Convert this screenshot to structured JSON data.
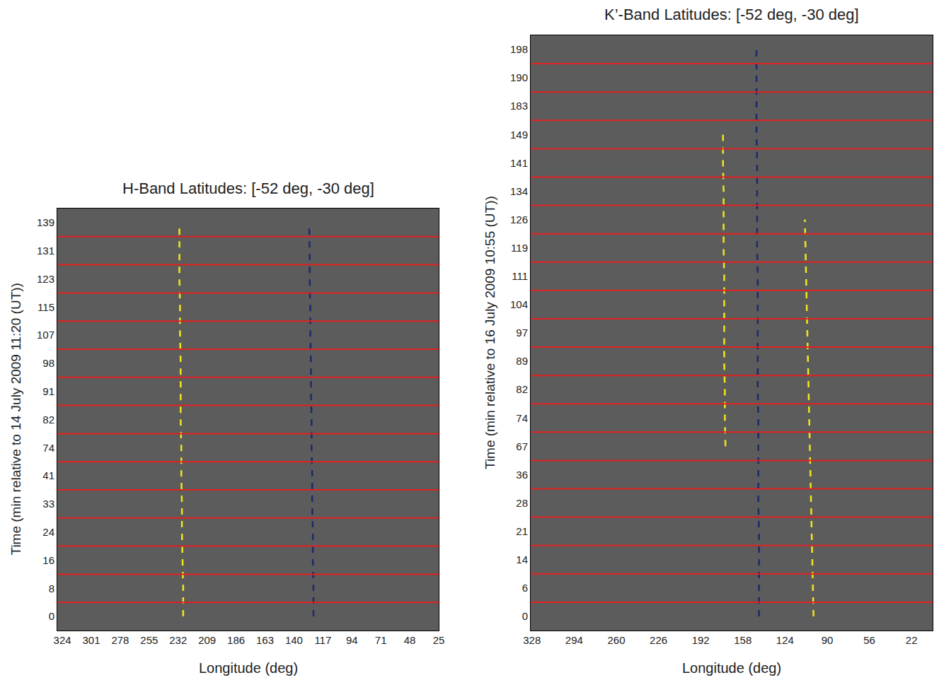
{
  "chart_data": [
    {
      "type": "line",
      "title": "H-Band Latitudes: [-52 deg, -30 deg]",
      "x_label": "Longitude (deg)",
      "y_label": "Time (min relative to 14 July 2009 11:20 (UT))",
      "categories": [
        "0",
        "8",
        "16",
        "24",
        "33",
        "41",
        "74",
        "82",
        "91",
        "98",
        "107",
        "115",
        "123",
        "131",
        "139"
      ],
      "xlim": [
        328,
        25
      ],
      "xticks": [
        324,
        301,
        278,
        255,
        232,
        209,
        186,
        163,
        140,
        117,
        94,
        71,
        48,
        25
      ],
      "grid": false,
      "series": [
        {
          "color": "#f2e51a",
          "line_style": "dash",
          "values": [
            228,
            228,
            228.5,
            229,
            229,
            229.5,
            229.5,
            230,
            230,
            230,
            230.5,
            230.5,
            231,
            231,
            231
          ]
        },
        {
          "color": "#1b2a6b",
          "line_style": "dash",
          "values": [
            124.5,
            124.5,
            125,
            125,
            125.5,
            125.5,
            126,
            126,
            126.5,
            126.5,
            127,
            127,
            127.5,
            127.5,
            128
          ]
        }
      ]
    },
    {
      "type": "line",
      "title": "K’-Band Latitudes: [-52 deg, -30 deg]",
      "x_label": "Longitude (deg)",
      "y_label": "Time (min relative to 16 July 2009 10:55 (UT))",
      "categories": [
        "0",
        "6",
        "14",
        "21",
        "28",
        "36",
        "67",
        "74",
        "82",
        "89",
        "97",
        "104",
        "111",
        "119",
        "126",
        "134",
        "141",
        "149",
        "183",
        "190",
        "198"
      ],
      "xlim": [
        329,
        5
      ],
      "xticks": [
        328,
        294,
        260,
        226,
        192,
        158,
        124,
        90,
        56,
        22
      ],
      "grid": false,
      "series": [
        {
          "color": "#1b2a6b",
          "line_style": "dash",
          "values": [
            145,
            145,
            145,
            145,
            145.5,
            145.5,
            145.5,
            145.5,
            146,
            146,
            146,
            146,
            146,
            146.5,
            146.5,
            146.5,
            146.5,
            147,
            147,
            147,
            147
          ]
        },
        {
          "color": "#f2e51a",
          "line_style": "dash",
          "values": [
            null,
            null,
            null,
            null,
            null,
            null,
            172,
            172.5,
            172.5,
            173,
            173,
            173,
            173,
            173.5,
            173.5,
            173.5,
            174,
            174,
            null,
            null,
            null
          ]
        },
        {
          "color": "#f2e51a",
          "line_style": "dash",
          "values": [
            101,
            101.5,
            102,
            102.5,
            103,
            103.5,
            104,
            104.5,
            105,
            105.5,
            106,
            106.5,
            107,
            107.5,
            108,
            null,
            null,
            null,
            null,
            null,
            null
          ]
        }
      ]
    }
  ]
}
